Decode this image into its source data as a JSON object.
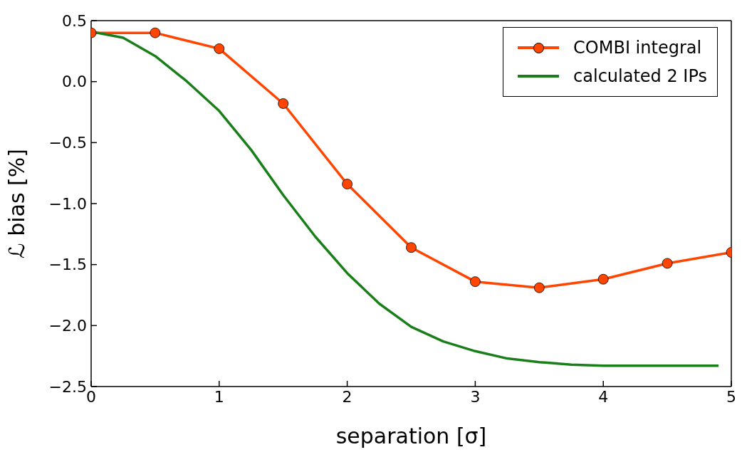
{
  "chart_data": {
    "type": "line",
    "xlabel": "separation [σ]",
    "ylabel": "ℒ bias [%]",
    "xlim": [
      0,
      5
    ],
    "xticks": [
      0,
      1,
      2,
      3,
      4,
      5
    ],
    "ylim": [
      -2.5,
      0.5
    ],
    "yticks": [
      {
        "value": -2.5,
        "label": "−2.5"
      },
      {
        "value": -2.0,
        "label": "−2.0"
      },
      {
        "value": -1.5,
        "label": "−1.5"
      },
      {
        "value": -1.0,
        "label": "−1.0"
      },
      {
        "value": -0.5,
        "label": "−0.5"
      },
      {
        "value": 0.0,
        "label": "0.0"
      },
      {
        "value": 0.5,
        "label": "0.5"
      }
    ],
    "grid": false,
    "legend": "top right",
    "series": [
      {
        "name": "COMBI integral",
        "color": "#ff4500",
        "marker": "circle",
        "x": [
          0,
          0.5,
          1,
          1.5,
          2,
          2.5,
          3,
          3.5,
          4,
          4.5,
          5
        ],
        "values": [
          0.4,
          0.4,
          0.27,
          -0.18,
          -0.84,
          -1.36,
          -1.64,
          -1.69,
          -1.62,
          -1.49,
          -1.4
        ]
      },
      {
        "name": "calculated 2 IPs",
        "color": "#1a7f1a",
        "marker": "none",
        "x": [
          0,
          0.25,
          0.5,
          0.75,
          1,
          1.25,
          1.5,
          1.75,
          2,
          2.25,
          2.5,
          2.75,
          3,
          3.25,
          3.5,
          3.75,
          4,
          4.25,
          4.5,
          4.75,
          4.9
        ],
        "values": [
          0.41,
          0.36,
          0.21,
          0.0,
          -0.24,
          -0.56,
          -0.93,
          -1.27,
          -1.57,
          -1.82,
          -2.01,
          -2.13,
          -2.21,
          -2.27,
          -2.3,
          -2.32,
          -2.33,
          -2.33,
          -2.33,
          -2.33,
          -2.33
        ]
      }
    ]
  }
}
